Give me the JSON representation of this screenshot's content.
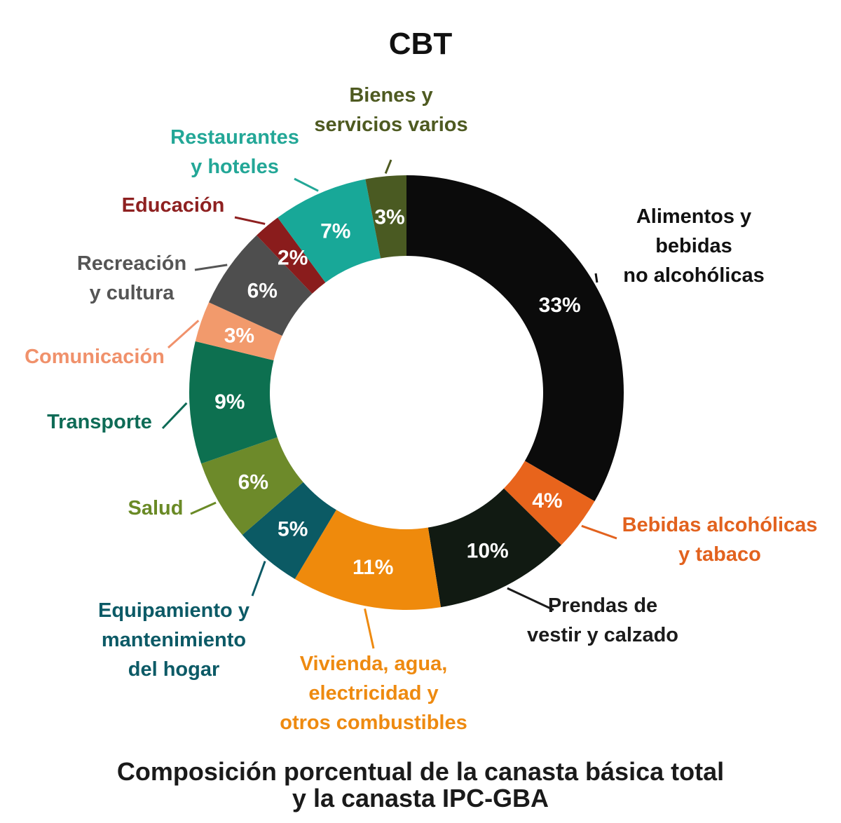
{
  "chart_data": {
    "type": "pie",
    "title": "CBT",
    "caption_lines": [
      "Composición porcentual de la canasta básica total",
      "y la canasta IPC-GBA"
    ],
    "slices": [
      {
        "label_lines": [
          "Alimentos y",
          "bebidas",
          "no alcohólicas"
        ],
        "value": 33,
        "value_label": "33%",
        "color": "#0b0b0b",
        "label_color": "#111111"
      },
      {
        "label_lines": [
          "Bebidas alcohólicas",
          "y tabaco"
        ],
        "value": 4,
        "value_label": "4%",
        "color": "#e8641c",
        "label_color": "#e2621e"
      },
      {
        "label_lines": [
          "Prendas de",
          "vestir y calzado"
        ],
        "value": 10,
        "value_label": "10%",
        "color": "#111a12",
        "label_color": "#1b1b1b"
      },
      {
        "label_lines": [
          "Vivienda, agua,",
          "electricidad y",
          "otros combustibles"
        ],
        "value": 11,
        "value_label": "11%",
        "color": "#ef8a0c",
        "label_color": "#ee8a10"
      },
      {
        "label_lines": [
          "Equipamiento y",
          "mantenimiento",
          "del hogar"
        ],
        "value": 5,
        "value_label": "5%",
        "color": "#0b5a64",
        "label_color": "#0c5a66"
      },
      {
        "label_lines": [
          "Salud"
        ],
        "value": 6,
        "value_label": "6%",
        "color": "#6d8a2a",
        "label_color": "#6a8a26"
      },
      {
        "label_lines": [
          "Transporte"
        ],
        "value": 9,
        "value_label": "9%",
        "color": "#0d7050",
        "label_color": "#0e6b56"
      },
      {
        "label_lines": [
          "Comunicación"
        ],
        "value": 3,
        "value_label": "3%",
        "color": "#f29a6c",
        "label_color": "#f0916b"
      },
      {
        "label_lines": [
          "Recreación",
          "y cultura"
        ],
        "value": 6,
        "value_label": "6%",
        "color": "#4e4e4e",
        "label_color": "#555555"
      },
      {
        "label_lines": [
          "Educación"
        ],
        "value": 2,
        "value_label": "2%",
        "color": "#8a1c1c",
        "label_color": "#8e2020"
      },
      {
        "label_lines": [
          "Restaurantes",
          "y hoteles"
        ],
        "value": 7,
        "value_label": "7%",
        "color": "#18a898",
        "label_color": "#23a797"
      },
      {
        "label_lines": [
          "Bienes y",
          "servicios varios"
        ],
        "value": 3,
        "value_label": "3%",
        "color": "#4a5a22",
        "label_color": "#4e5a21"
      }
    ]
  }
}
